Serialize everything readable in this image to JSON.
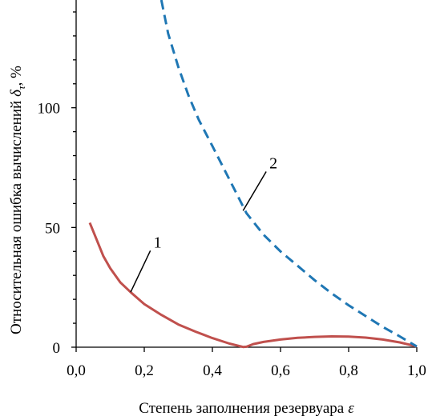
{
  "chart_data": {
    "type": "line",
    "xlabel_main": "Степень заполнения резервуара",
    "xlabel_symbol": "ε",
    "ylabel_main": "Относительная ошибка вычислений",
    "ylabel_symbol": "δ",
    "ylabel_subscript": "τ",
    "ylabel_unit": ", %",
    "xlim": [
      0.0,
      1.0
    ],
    "ylim": [
      0,
      145
    ],
    "x_ticks": [
      0.0,
      0.2,
      0.4,
      0.6,
      0.8,
      1.0
    ],
    "x_tick_labels": [
      "0,0",
      "0,2",
      "0,4",
      "0,6",
      "0,8",
      "1,0"
    ],
    "y_ticks": [
      0,
      50,
      100
    ],
    "y_tick_labels": [
      "0",
      "50",
      "100"
    ],
    "y_minor_ticks": [
      10,
      20,
      30,
      40,
      60,
      70,
      80,
      90,
      110,
      120,
      130,
      140
    ],
    "grid": false,
    "series": [
      {
        "name": "1",
        "color": "#c0504d",
        "style": "solid",
        "x": [
          0.04,
          0.06,
          0.08,
          0.1,
          0.13,
          0.16,
          0.2,
          0.25,
          0.3,
          0.35,
          0.4,
          0.45,
          0.49,
          0.5,
          0.52,
          0.55,
          0.6,
          0.65,
          0.7,
          0.75,
          0.8,
          0.85,
          0.9,
          0.95,
          1.0
        ],
        "y": [
          52,
          45,
          38,
          33,
          27,
          23,
          18,
          13.5,
          9.5,
          6.5,
          3.8,
          1.5,
          0.1,
          0.2,
          1.3,
          2.2,
          3.2,
          3.9,
          4.3,
          4.5,
          4.4,
          4.0,
          3.2,
          2.0,
          0.3
        ]
      },
      {
        "name": "2",
        "color": "#1f77b4",
        "style": "dashed",
        "x": [
          0.25,
          0.27,
          0.3,
          0.33,
          0.36,
          0.4,
          0.45,
          0.5,
          0.55,
          0.6,
          0.65,
          0.7,
          0.75,
          0.8,
          0.85,
          0.9,
          0.95,
          1.0
        ],
        "y": [
          145,
          131,
          117,
          105,
          95,
          84,
          70,
          56,
          47,
          40,
          34,
          28,
          22.5,
          17.5,
          13,
          8.5,
          4.5,
          0.3
        ]
      }
    ],
    "annotations": [
      {
        "text": "1",
        "series": "1",
        "at_x": 0.16,
        "at_y": 23,
        "text_x": 0.225,
        "text_y": 41
      },
      {
        "text": "2",
        "series": "2",
        "at_x": 0.49,
        "at_y": 57,
        "text_x": 0.565,
        "text_y": 74
      }
    ]
  }
}
